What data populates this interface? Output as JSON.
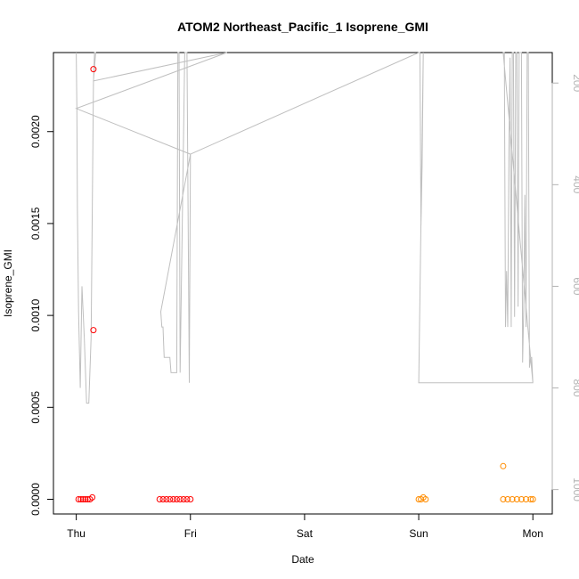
{
  "chart_data": {
    "type": "scatter",
    "title": "ATOM2 Northeast_Pacific_1 Isoprene_GMI",
    "xlabel": "Date",
    "ylabel": "Isoprene_GMI",
    "x_ticks": [
      {
        "value": 0,
        "label": "Thu"
      },
      {
        "value": 1,
        "label": "Fri"
      },
      {
        "value": 2,
        "label": "Sat"
      },
      {
        "value": 3,
        "label": "Sun"
      },
      {
        "value": 4,
        "label": "Mon"
      }
    ],
    "xlim": [
      -0.2,
      4.17
    ],
    "ylim": [
      -8e-05,
      0.00243
    ],
    "y_ticks": [
      {
        "value": 0.0,
        "label": "0.0000"
      },
      {
        "value": 0.0005,
        "label": "0.0005"
      },
      {
        "value": 0.001,
        "label": "0.0010"
      },
      {
        "value": 0.0015,
        "label": "0.0015"
      },
      {
        "value": 0.002,
        "label": "0.0020"
      }
    ],
    "y2_axis": {
      "reversed": true,
      "lim": [
        1048,
        140
      ],
      "ticks": [
        {
          "value": 200,
          "label": "200"
        },
        {
          "value": 400,
          "label": "400"
        },
        {
          "value": 600,
          "label": "600"
        },
        {
          "value": 800,
          "label": "800"
        },
        {
          "value": 1000,
          "label": "1000"
        }
      ],
      "color": "#b3b3b3"
    },
    "colors": {
      "series_red": "#ff0000",
      "series_orange": "#ff8c00",
      "line": "#bfbfbf"
    },
    "grid": false,
    "series": [
      {
        "color": "#ff0000",
        "marker": "open-circle",
        "points": [
          [
            0.02,
            0.0
          ],
          [
            0.04,
            0.0
          ],
          [
            0.06,
            0.0
          ],
          [
            0.08,
            0.0
          ],
          [
            0.1,
            0.0
          ],
          [
            0.12,
            0.0
          ],
          [
            0.14,
            1e-05
          ],
          [
            0.15,
            0.00234
          ],
          [
            0.15,
            0.00092
          ],
          [
            0.73,
            0.0
          ],
          [
            0.76,
            0.0
          ],
          [
            0.79,
            0.0
          ],
          [
            0.82,
            0.0
          ],
          [
            0.85,
            0.0
          ],
          [
            0.88,
            0.0
          ],
          [
            0.91,
            0.0
          ],
          [
            0.94,
            0.0
          ],
          [
            0.97,
            0.0
          ],
          [
            1.0,
            0.0
          ]
        ]
      },
      {
        "color": "#ff8c00",
        "marker": "open-circle",
        "points": [
          [
            3.0,
            0.0
          ],
          [
            3.02,
            0.0
          ],
          [
            3.04,
            1e-05
          ],
          [
            3.06,
            0.0
          ],
          [
            3.74,
            0.00018
          ],
          [
            3.74,
            0.0
          ],
          [
            3.78,
            0.0
          ],
          [
            3.82,
            0.0
          ],
          [
            3.86,
            0.0
          ],
          [
            3.9,
            0.0
          ],
          [
            3.94,
            0.0
          ],
          [
            3.98,
            0.0
          ],
          [
            4.0,
            0.0
          ]
        ]
      }
    ],
    "secondary_line": {
      "axis": "y2",
      "color": "#bfbfbf",
      "points": [
        [
          0.0,
          140
        ],
        [
          0.005,
          250
        ],
        [
          0.01,
          450
        ],
        [
          0.02,
          650
        ],
        [
          0.035,
          800
        ],
        [
          0.05,
          600
        ],
        [
          0.07,
          700
        ],
        [
          0.09,
          830
        ],
        [
          0.11,
          830
        ],
        [
          0.13,
          700
        ],
        [
          0.15,
          200
        ],
        [
          0.16,
          140
        ],
        [
          0.17,
          140
        ],
        [
          0.15,
          196
        ],
        [
          1.32,
          140
        ],
        [
          0.0,
          250
        ],
        [
          1.0,
          340
        ],
        [
          0.74,
          650
        ],
        [
          0.75,
          680
        ],
        [
          0.76,
          680
        ],
        [
          0.77,
          740
        ],
        [
          0.82,
          740
        ],
        [
          0.83,
          770
        ],
        [
          0.88,
          770
        ],
        [
          0.89,
          140
        ],
        [
          0.9,
          140
        ],
        [
          0.91,
          770
        ],
        [
          0.95,
          140
        ],
        [
          0.97,
          140
        ],
        [
          0.99,
          790
        ],
        [
          1.0,
          340
        ],
        [
          3.0,
          140
        ],
        [
          3.01,
          140
        ],
        [
          3.02,
          480
        ],
        [
          3.03,
          360
        ],
        [
          3.04,
          140
        ],
        [
          3.0,
          790
        ],
        [
          4.0,
          790
        ],
        [
          3.74,
          140
        ],
        [
          3.75,
          140
        ],
        [
          3.76,
          680
        ],
        [
          3.77,
          570
        ],
        [
          3.78,
          680
        ],
        [
          3.79,
          330
        ],
        [
          3.8,
          150
        ],
        [
          3.81,
          680
        ],
        [
          3.82,
          140
        ],
        [
          3.83,
          140
        ],
        [
          3.84,
          660
        ],
        [
          3.85,
          140
        ],
        [
          3.86,
          140
        ],
        [
          3.87,
          640
        ],
        [
          3.88,
          140
        ],
        [
          3.9,
          140
        ],
        [
          3.91,
          750
        ],
        [
          3.92,
          640
        ],
        [
          3.93,
          420
        ],
        [
          3.94,
          680
        ],
        [
          3.95,
          140
        ],
        [
          3.96,
          140
        ],
        [
          3.97,
          760
        ],
        [
          3.98,
          740
        ],
        [
          3.99,
          740
        ],
        [
          4.0,
          790
        ]
      ]
    }
  }
}
